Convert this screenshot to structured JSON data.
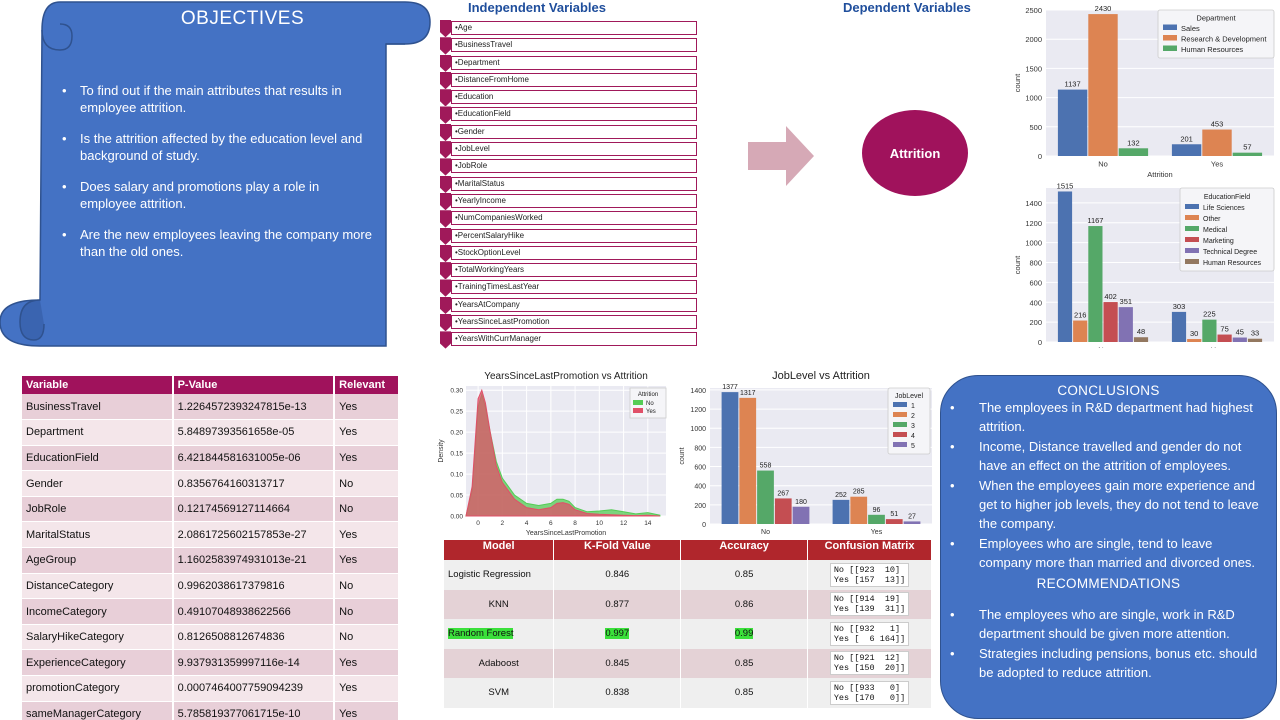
{
  "objectives": {
    "title": "OBJECTIVES",
    "items": [
      "To find out if the main attributes that results in employee attrition.",
      "Is the attrition affected by the education level and background of study.",
      "Does salary and promotions  play a role in employee attrition.",
      "Are the new employees leaving the company more than the old ones."
    ]
  },
  "independent": {
    "title": "Independent Variables",
    "items": [
      "•Age",
      "•BusinessTravel",
      "•Department",
      "•DistanceFromHome",
      "•Education",
      "•EducationField",
      "•Gender",
      "•JobLevel",
      "•JobRole",
      "•MaritalStatus",
      "•YearlyIncome",
      "•NumCompaniesWorked",
      "•PercentSalaryHike",
      "•StockOptionLevel",
      "•TotalWorkingYears",
      "•TrainingTimesLastYear",
      "•YearsAtCompany",
      "•YearsSinceLastPromotion",
      "•YearsWithCurrManager"
    ]
  },
  "dependent": {
    "title": "Dependent Variables",
    "target": "Attrition"
  },
  "chart_data": [
    {
      "type": "bar",
      "categories": [
        "No",
        "Yes"
      ],
      "xlabel": "Attrition",
      "ylabel": "count",
      "ylim": [
        0,
        2500
      ],
      "yticks": [
        "0",
        "500",
        "1000",
        "1500",
        "2000",
        "2500"
      ],
      "legend_title": "Department",
      "legend": "top-right",
      "series": [
        {
          "name": "Sales",
          "values": [
            1137,
            201
          ],
          "color": "#4c72b0"
        },
        {
          "name": "Research & Development",
          "values": [
            2430,
            453
          ],
          "color": "#dd8452"
        },
        {
          "name": "Human Resources",
          "values": [
            132,
            57
          ],
          "color": "#55a868"
        }
      ]
    },
    {
      "type": "bar",
      "categories": [
        "No",
        "Yes"
      ],
      "xlabel": "Attrition",
      "ylabel": "count",
      "ylim": [
        0,
        1550
      ],
      "yticks": [
        "0",
        "200",
        "400",
        "600",
        "800",
        "1000",
        "1200",
        "1400"
      ],
      "legend_title": "EducationField",
      "legend": "top-right",
      "series": [
        {
          "name": "Life Sciences",
          "values": [
            1515,
            303
          ],
          "color": "#4c72b0"
        },
        {
          "name": "Other",
          "values": [
            216,
            30
          ],
          "color": "#dd8452"
        },
        {
          "name": "Medical",
          "values": [
            1167,
            225
          ],
          "color": "#55a868"
        },
        {
          "name": "Marketing",
          "values": [
            402,
            75
          ],
          "color": "#c44e52"
        },
        {
          "name": "Technical Degree",
          "values": [
            351,
            45
          ],
          "color": "#8172b3"
        },
        {
          "name": "Human Resources",
          "values": [
            48,
            33
          ],
          "color": "#937860"
        }
      ]
    },
    {
      "type": "area",
      "title": "YearsSinceLastPromotion vs Attrition",
      "xlabel": "YearsSinceLastPromotion",
      "ylabel": "Density",
      "xlim": [
        -1,
        15.5
      ],
      "ylim": [
        0,
        0.3
      ],
      "xticks": [
        "0",
        "2",
        "4",
        "6",
        "8",
        "10",
        "12",
        "14"
      ],
      "yticks": [
        "0.00",
        "0.05",
        "0.10",
        "0.15",
        "0.20",
        "0.25",
        "0.30"
      ],
      "legend_title": "Attrition",
      "legend": "top-right",
      "series": [
        {
          "name": "No",
          "color": "#55cc55",
          "x": [
            -1,
            -0.5,
            0,
            0.3,
            0.6,
            1,
            1.5,
            2,
            3,
            4,
            5,
            6,
            6.5,
            7,
            7.5,
            8,
            9,
            10,
            11,
            12,
            13,
            14,
            15
          ],
          "y": [
            0.0,
            0.06,
            0.26,
            0.29,
            0.26,
            0.2,
            0.13,
            0.09,
            0.05,
            0.03,
            0.025,
            0.03,
            0.04,
            0.04,
            0.035,
            0.02,
            0.01,
            0.012,
            0.015,
            0.01,
            0.005,
            0.008,
            0.002
          ]
        },
        {
          "name": "Yes",
          "color": "#e05068",
          "x": [
            -1,
            -0.5,
            0,
            0.3,
            0.6,
            1,
            1.5,
            2,
            3,
            4,
            5,
            6,
            6.5,
            7,
            7.5,
            8,
            9,
            10,
            11,
            12,
            13,
            14,
            15
          ],
          "y": [
            0.0,
            0.07,
            0.28,
            0.3,
            0.27,
            0.2,
            0.12,
            0.08,
            0.04,
            0.02,
            0.015,
            0.02,
            0.03,
            0.032,
            0.028,
            0.015,
            0.006,
            0.004,
            0.003,
            0.002,
            0.001,
            0.002,
            0.0
          ]
        }
      ]
    },
    {
      "type": "bar",
      "title": "JobLevel vs Attrition",
      "categories": [
        "No",
        "Yes"
      ],
      "ylabel": "count",
      "ylim": [
        0,
        1420
      ],
      "yticks": [
        "0",
        "200",
        "400",
        "600",
        "800",
        "1000",
        "1200",
        "1400"
      ],
      "legend_title": "JobLevel",
      "legend": "top-right",
      "series": [
        {
          "name": "1",
          "values": [
            1377,
            252
          ],
          "color": "#4c72b0"
        },
        {
          "name": "2",
          "values": [
            1317,
            285
          ],
          "color": "#dd8452"
        },
        {
          "name": "3",
          "values": [
            558,
            96
          ],
          "color": "#55a868"
        },
        {
          "name": "4",
          "values": [
            267,
            51
          ],
          "color": "#c44e52"
        },
        {
          "name": "5",
          "values": [
            180,
            27
          ],
          "color": "#8172b3"
        }
      ]
    }
  ],
  "pvalues": {
    "headers": [
      "Variable",
      "P-Value",
      "Relevant"
    ],
    "rows": [
      [
        "BusinessTravel",
        "1.2264572393247815e-13",
        "Yes"
      ],
      [
        "Department",
        "5.84897393561658e-05",
        "Yes"
      ],
      [
        "EducationField",
        "6.421844581631005e-06",
        "Yes"
      ],
      [
        "Gender",
        "0.8356764160313717",
        "No"
      ],
      [
        "JobRole",
        "0.12174569127114664",
        "No"
      ],
      [
        "MaritalStatus",
        "2.0861725602157853e-27",
        "Yes"
      ],
      [
        "AgeGroup",
        "1.1602583974931013e-21",
        "Yes"
      ],
      [
        "DistanceCategory",
        "0.9962038617379816",
        "No"
      ],
      [
        "IncomeCategory",
        "0.49107048938622566",
        "No"
      ],
      [
        "SalaryHikeCategory",
        "0.8126508812674836",
        "No"
      ],
      [
        "ExperienceCategory",
        "9.937931359997116e-14",
        "Yes"
      ],
      [
        "promotionCategory",
        "0.0007464007759094239",
        "Yes"
      ],
      [
        "sameManagerCategory",
        "5.785819377061715e-10",
        "Yes"
      ]
    ]
  },
  "models": {
    "headers": [
      "Model",
      "K-Fold Value",
      "Accuracy",
      "Confusion Matrix"
    ],
    "rows": [
      {
        "name": "Logistic Regression",
        "kfold": "0.846",
        "acc": "0.85",
        "cm": "No [[923  10]\nYes [157  13]]",
        "highlight": false,
        "left": true
      },
      {
        "name": "KNN",
        "kfold": "0.877",
        "acc": "0.86",
        "cm": "No [[914  19]\nYes [139  31]]",
        "highlight": false,
        "left": false
      },
      {
        "name": "Random Forest",
        "kfold": "0.997",
        "acc": "0.99",
        "cm": "No [[932   1]\nYes [  6 164]]",
        "highlight": true,
        "left": true
      },
      {
        "name": "Adaboost",
        "kfold": "0.845",
        "acc": "0.85",
        "cm": "No [[921  12]\nYes [150  20]]",
        "highlight": false,
        "left": false
      },
      {
        "name": "SVM",
        "kfold": "0.838",
        "acc": "0.85",
        "cm": "No [[933   0]\nYes [170   0]]",
        "highlight": false,
        "left": false
      }
    ]
  },
  "conclusions": {
    "title": "CONCLUSIONS",
    "items": [
      "The employees in R&D department  had highest attrition.",
      "Income, Distance travelled and gender do not have an effect on the attrition of employees.",
      "When the employees gain more experience and get to higher job levels, they do not tend to leave the company.",
      "Employees who are single, tend to leave company more than married and divorced ones."
    ],
    "rec_title": "RECOMMENDATIONS",
    "recommendations": [
      "The employees who are single, work in R&D department  should be given more attention.",
      "Strategies including pensions, bonus etc. should be adopted to reduce attrition."
    ]
  }
}
